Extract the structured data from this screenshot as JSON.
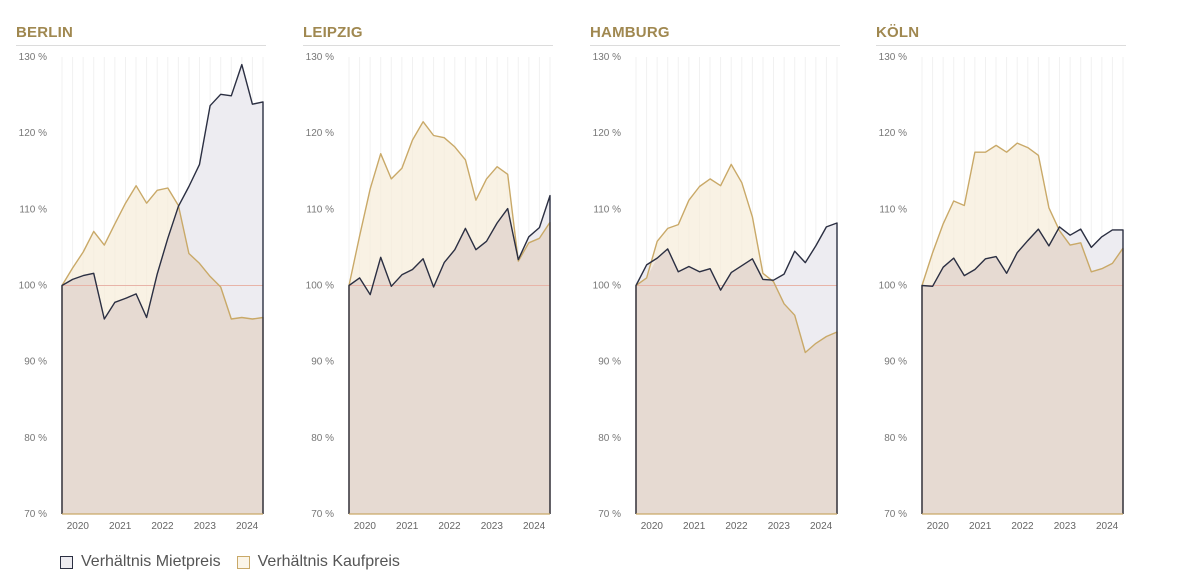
{
  "legend": {
    "miet_label": "Verhältnis Mietpreis",
    "kauf_label": "Verhältnis Kaufpreis"
  },
  "colors": {
    "miet": "#2b2f42",
    "kauf": "#c9a968",
    "baseline": "#e8b4a8",
    "title": "#a08850"
  },
  "chart_data": [
    {
      "type": "line",
      "title": "BERLIN",
      "x_labels": [
        "2020",
        "2021",
        "2022",
        "2023",
        "2024"
      ],
      "y_ticks": [
        "70 %",
        "80 %",
        "90 %",
        "100 %",
        "110 %",
        "120 %",
        "130 %"
      ],
      "ylim": [
        70,
        130
      ],
      "baseline": 100,
      "series": [
        {
          "name": "Verhältnis Mietpreis",
          "values": [
            100,
            100.8,
            101.3,
            101.6,
            95.6,
            97.8,
            98.3,
            98.9,
            95.8,
            101.5,
            106.2,
            110.4,
            113,
            115.9,
            123.6,
            125.1,
            124.9,
            129,
            123.8,
            124.1
          ]
        },
        {
          "name": "Verhältnis Kaufpreis",
          "values": [
            100,
            102.3,
            104.4,
            107.1,
            105.3,
            108.1,
            110.8,
            113.1,
            110.8,
            112.5,
            112.8,
            110.5,
            104.2,
            102.9,
            101.2,
            99.8,
            95.6,
            95.8,
            95.6,
            95.8
          ]
        }
      ]
    },
    {
      "type": "line",
      "title": "LEIPZIG",
      "x_labels": [
        "2020",
        "2021",
        "2022",
        "2023",
        "2024"
      ],
      "y_ticks": [
        "70 %",
        "80 %",
        "90 %",
        "100 %",
        "110 %",
        "120 %",
        "130 %"
      ],
      "ylim": [
        70,
        130
      ],
      "baseline": 100,
      "series": [
        {
          "name": "Verhältnis Mietpreis",
          "values": [
            100,
            101,
            98.8,
            103.7,
            99.9,
            101.4,
            102.1,
            103.5,
            99.8,
            103,
            104.7,
            107.5,
            104.7,
            105.8,
            108.2,
            110.1,
            103.4,
            106.4,
            107.6,
            111.8
          ]
        },
        {
          "name": "Verhältnis Kaufpreis",
          "values": [
            100,
            106.5,
            112.7,
            117.3,
            114,
            115.4,
            119.1,
            121.5,
            119.7,
            119.4,
            118.2,
            116.5,
            111.2,
            114,
            115.6,
            114.6,
            103.2,
            105.6,
            106.2,
            108.3
          ]
        }
      ]
    },
    {
      "type": "line",
      "title": "HAMBURG",
      "x_labels": [
        "2020",
        "2021",
        "2022",
        "2023",
        "2024"
      ],
      "y_ticks": [
        "70 %",
        "80 %",
        "90 %",
        "100 %",
        "110 %",
        "120 %",
        "130 %"
      ],
      "ylim": [
        70,
        130
      ],
      "baseline": 100,
      "series": [
        {
          "name": "Verhältnis Mietpreis",
          "values": [
            100,
            102.7,
            103.6,
            104.8,
            101.8,
            102.5,
            101.8,
            102.2,
            99.4,
            101.7,
            102.6,
            103.5,
            100.8,
            100.7,
            101.5,
            104.5,
            103,
            105.2,
            107.7,
            108.2
          ]
        },
        {
          "name": "Verhältnis Kaufpreis",
          "values": [
            100,
            101,
            105.8,
            107.5,
            108,
            111.2,
            113,
            114,
            113.1,
            115.9,
            113.5,
            109,
            101.6,
            100.5,
            97.6,
            96.1,
            91.2,
            92.4,
            93.3,
            93.9
          ]
        }
      ]
    },
    {
      "type": "line",
      "title": "KÖLN",
      "x_labels": [
        "2020",
        "2021",
        "2022",
        "2023",
        "2024"
      ],
      "y_ticks": [
        "70 %",
        "80 %",
        "90 %",
        "100 %",
        "110 %",
        "120 %",
        "130 %"
      ],
      "ylim": [
        70,
        130
      ],
      "baseline": 100,
      "series": [
        {
          "name": "Verhältnis Mietpreis",
          "values": [
            100,
            99.9,
            102.4,
            103.6,
            101.3,
            102.1,
            103.5,
            103.8,
            101.6,
            104.3,
            105.9,
            107.4,
            105.2,
            107.7,
            106.6,
            107.4,
            105,
            106.4,
            107.3,
            107.3
          ]
        },
        {
          "name": "Verhältnis Kaufpreis",
          "values": [
            100,
            104.3,
            108.1,
            111.1,
            110.5,
            117.5,
            117.5,
            118.4,
            117.5,
            118.7,
            118.1,
            117.1,
            110.2,
            107.2,
            105.3,
            105.6,
            101.8,
            102.2,
            102.9,
            104.9
          ]
        }
      ]
    }
  ]
}
